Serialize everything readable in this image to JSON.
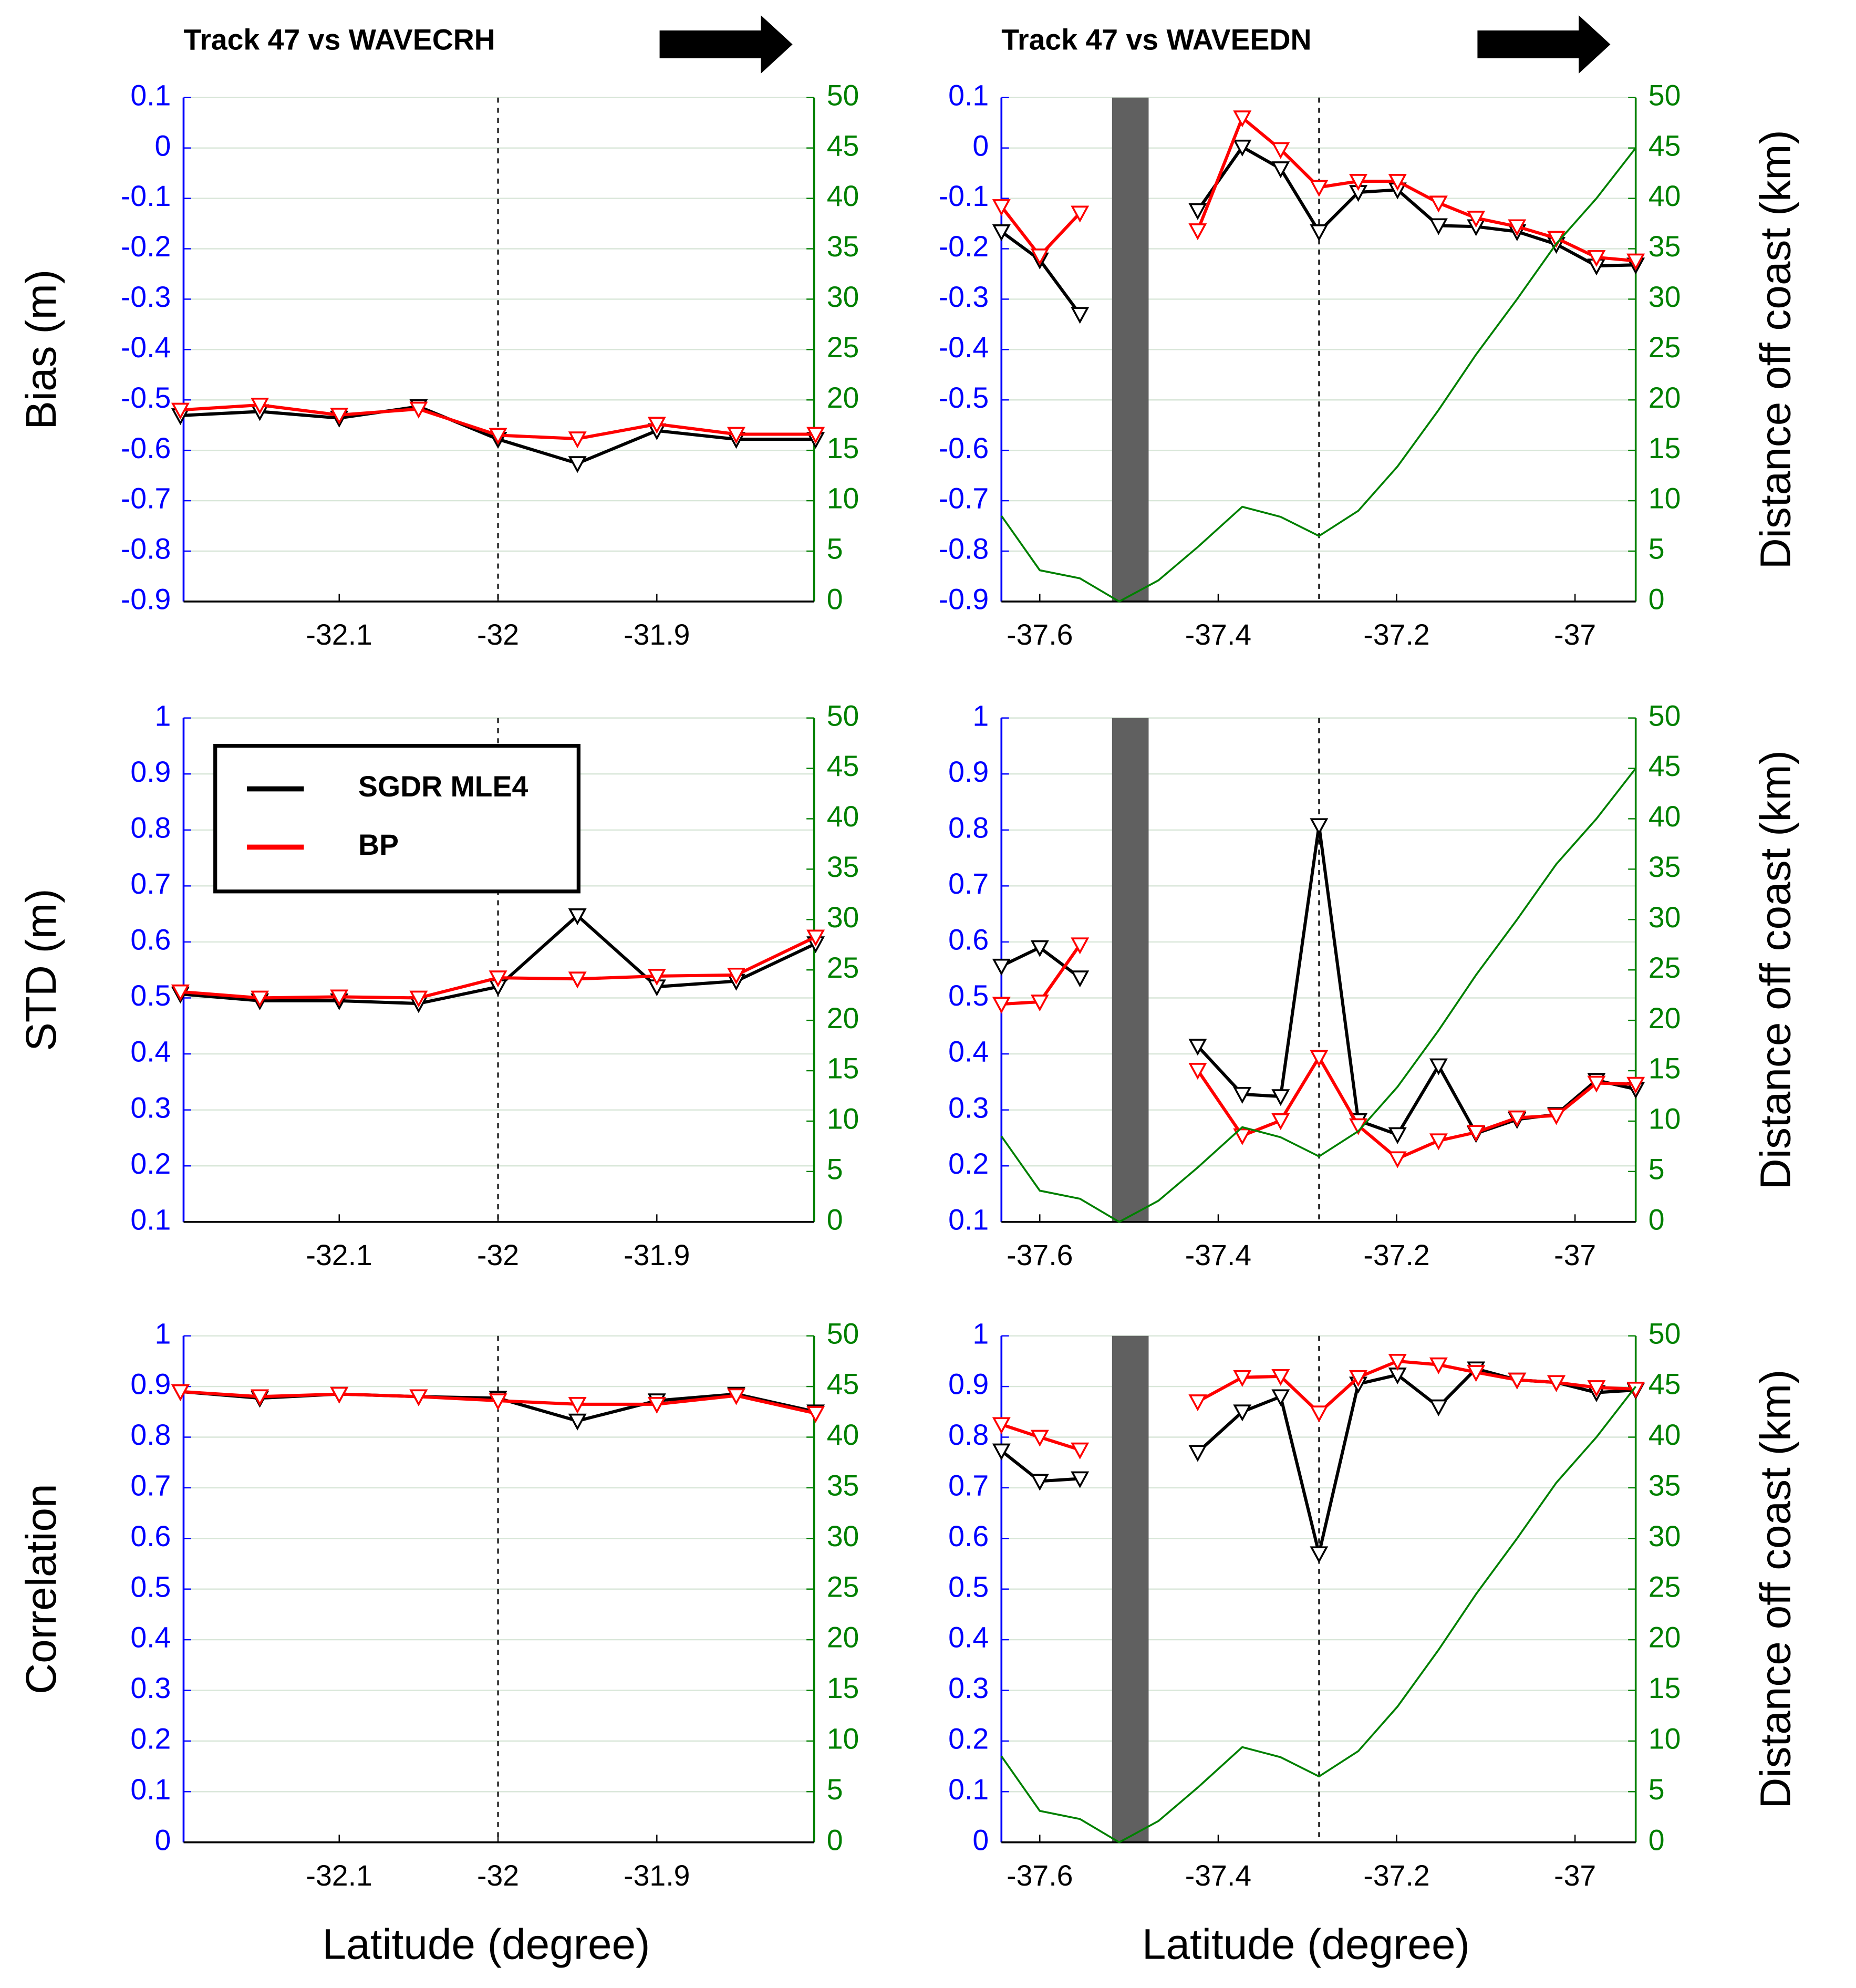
{
  "chart_data": [
    {
      "type": "line",
      "title": "Track 47 vs WAVECRH",
      "ylabel": "Bias (m)",
      "x": [
        -32.2,
        -32.15,
        -32.1,
        -32.05,
        -32.0,
        -31.95,
        -31.9,
        -31.85,
        -31.8
      ],
      "xlim": [
        -32.198,
        -31.801
      ],
      "xticks": [
        -32.1,
        -32,
        -31.9
      ],
      "ylim": [
        -0.9,
        0.1
      ],
      "yticks": [
        0.1,
        0,
        -0.1,
        -0.2,
        -0.3,
        -0.4,
        -0.5,
        -0.6,
        -0.7,
        -0.8,
        -0.9
      ],
      "y2lim": [
        0,
        50
      ],
      "y2ticks": [
        50,
        45,
        40,
        35,
        30,
        25,
        20,
        15,
        10,
        5,
        0
      ],
      "ycolor": "#0000ff",
      "y2color": "#008000",
      "grid": true,
      "vlines": [
        -32
      ],
      "series": [
        {
          "color": "#000000",
          "marker": "v",
          "values": [
            -0.531,
            -0.523,
            -0.536,
            -0.513,
            -0.578,
            -0.626,
            -0.561,
            -0.578,
            -0.578
          ]
        },
        {
          "color": "#ff0000",
          "marker": "v",
          "values": [
            -0.52,
            -0.51,
            -0.53,
            -0.518,
            -0.57,
            -0.577,
            -0.548,
            -0.568,
            -0.568
          ]
        }
      ]
    },
    {
      "type": "line",
      "title": "Track 47 vs WAVEEDN",
      "y2label": "Distance off coast (km)",
      "x": [
        -37.643,
        -37.6,
        -37.555,
        -37.511,
        -37.467,
        -37.423,
        -37.373,
        -37.33,
        -37.287,
        -37.243,
        -37.199,
        -37.153,
        -37.111,
        -37.065,
        -37.021,
        -36.976,
        -36.932
      ],
      "xlim": [
        -37.643,
        -36.932
      ],
      "xticks": [
        -37.6,
        -37.4,
        -37.2,
        -37
      ],
      "ylim": [
        -0.9,
        0.1
      ],
      "yticks": [
        0.1,
        0,
        -0.1,
        -0.2,
        -0.3,
        -0.4,
        -0.5,
        -0.6,
        -0.7,
        -0.8,
        -0.9
      ],
      "y2lim": [
        0,
        50
      ],
      "y2ticks": [
        50,
        45,
        40,
        35,
        30,
        25,
        20,
        15,
        10,
        5,
        0
      ],
      "ycolor": "#0000ff",
      "y2color": "#008000",
      "grid": true,
      "vlines": [
        -37.287
      ],
      "shade": [
        -37.519,
        -37.478
      ],
      "shade_color": "#606060",
      "series": [
        {
          "color": "#000000",
          "marker": "v",
          "values": [
            -0.166,
            -0.222,
            -0.33,
            null,
            null,
            -0.124,
            0.002,
            -0.041,
            -0.166,
            -0.088,
            -0.083,
            -0.154,
            -0.156,
            -0.166,
            -0.191,
            -0.234,
            -0.232
          ]
        },
        {
          "color": "#ff0000",
          "marker": "v",
          "values": [
            -0.116,
            -0.214,
            -0.129,
            null,
            null,
            -0.164,
            0.06,
            -0.003,
            -0.078,
            -0.066,
            -0.066,
            -0.109,
            -0.139,
            -0.156,
            -0.179,
            -0.217,
            -0.224
          ]
        },
        {
          "color": "#008000",
          "axis": "y2",
          "values": [
            8.5,
            3.1,
            2.3,
            0,
            2.1,
            5.4,
            9.4,
            8.4,
            6.5,
            9.0,
            13.4,
            19,
            24.5,
            30,
            35.5,
            40,
            45
          ]
        }
      ]
    },
    {
      "type": "line",
      "ylabel": "STD (m)",
      "legend": true,
      "legend_loc": "upper left",
      "x": [
        -32.2,
        -32.15,
        -32.1,
        -32.05,
        -32.0,
        -31.95,
        -31.9,
        -31.85,
        -31.8
      ],
      "xlim": [
        -32.198,
        -31.801
      ],
      "xticks": [
        -32.1,
        -32,
        -31.9
      ],
      "ylim": [
        0.1,
        1
      ],
      "yticks": [
        1,
        0.9,
        0.8,
        0.7,
        0.6,
        0.5,
        0.4,
        0.3,
        0.2,
        0.1
      ],
      "y2lim": [
        0,
        50
      ],
      "y2ticks": [
        50,
        45,
        40,
        35,
        30,
        25,
        20,
        15,
        10,
        5,
        0
      ],
      "ycolor": "#0000ff",
      "y2color": "#008000",
      "grid": true,
      "vlines": [
        -32
      ],
      "series": [
        {
          "name": "SGDR MLE4",
          "color": "#000000",
          "marker": "v",
          "values": [
            0.507,
            0.495,
            0.495,
            0.49,
            0.52,
            0.647,
            0.52,
            0.53,
            0.597
          ]
        },
        {
          "name": "BP",
          "color": "#ff0000",
          "marker": "v",
          "values": [
            0.511,
            0.5,
            0.502,
            0.5,
            0.536,
            0.534,
            0.539,
            0.541,
            0.609
          ]
        }
      ]
    },
    {
      "type": "line",
      "y2label": "Distance off coast (km)",
      "x": [
        -37.643,
        -37.6,
        -37.555,
        -37.511,
        -37.467,
        -37.423,
        -37.373,
        -37.33,
        -37.287,
        -37.243,
        -37.199,
        -37.153,
        -37.111,
        -37.065,
        -37.021,
        -36.976,
        -36.932
      ],
      "xlim": [
        -37.643,
        -36.932
      ],
      "xticks": [
        -37.6,
        -37.4,
        -37.2,
        -37
      ],
      "ylim": [
        0.1,
        1
      ],
      "yticks": [
        1,
        0.9,
        0.8,
        0.7,
        0.6,
        0.5,
        0.4,
        0.3,
        0.2,
        0.1
      ],
      "y2lim": [
        0,
        50
      ],
      "y2ticks": [
        50,
        45,
        40,
        35,
        30,
        25,
        20,
        15,
        10,
        5,
        0
      ],
      "ycolor": "#0000ff",
      "y2color": "#008000",
      "grid": true,
      "vlines": [
        -37.287
      ],
      "shade": [
        -37.519,
        -37.478
      ],
      "shade_color": "#606060",
      "series": [
        {
          "color": "#000000",
          "marker": "v",
          "values": [
            0.557,
            0.59,
            0.536,
            null,
            null,
            0.414,
            0.328,
            0.324,
            0.808,
            0.281,
            0.256,
            0.379,
            0.258,
            0.283,
            0.292,
            0.353,
            0.337
          ]
        },
        {
          "color": "#ff0000",
          "marker": "v",
          "values": [
            0.489,
            0.493,
            0.595,
            null,
            null,
            0.371,
            0.254,
            0.281,
            0.394,
            0.272,
            0.213,
            0.245,
            0.26,
            0.286,
            0.29,
            0.348,
            0.346
          ]
        },
        {
          "color": "#008000",
          "axis": "y2",
          "values": [
            8.5,
            3.1,
            2.3,
            0,
            2.1,
            5.4,
            9.4,
            8.4,
            6.5,
            9.0,
            13.4,
            19,
            24.5,
            30,
            35.5,
            40,
            45
          ]
        }
      ]
    },
    {
      "type": "line",
      "ylabel": "Correlation",
      "xlabel": "Latitude (degree)",
      "x": [
        -32.2,
        -32.15,
        -32.1,
        -32.05,
        -32.0,
        -31.95,
        -31.9,
        -31.85,
        -31.8
      ],
      "xlim": [
        -32.198,
        -31.801
      ],
      "xticks": [
        -32.1,
        -32,
        -31.9
      ],
      "ylim": [
        0,
        1
      ],
      "yticks": [
        1,
        0.9,
        0.8,
        0.7,
        0.6,
        0.5,
        0.4,
        0.3,
        0.2,
        0.1,
        0
      ],
      "y2lim": [
        0,
        50
      ],
      "y2ticks": [
        50,
        45,
        40,
        35,
        30,
        25,
        20,
        15,
        10,
        5,
        0
      ],
      "ycolor": "#0000ff",
      "y2color": "#008000",
      "grid": true,
      "vlines": [
        -32
      ],
      "series": [
        {
          "color": "#000000",
          "marker": "v",
          "values": [
            0.89,
            0.877,
            0.885,
            0.88,
            0.877,
            0.832,
            0.872,
            0.885,
            0.85
          ]
        },
        {
          "color": "#ff0000",
          "marker": "v",
          "values": [
            0.89,
            0.88,
            0.885,
            0.88,
            0.872,
            0.865,
            0.865,
            0.882,
            0.847
          ]
        }
      ]
    },
    {
      "type": "line",
      "y2label": "Distance off coast (km)",
      "xlabel": "Latitude (degree)",
      "x": [
        -37.643,
        -37.6,
        -37.555,
        -37.511,
        -37.467,
        -37.423,
        -37.373,
        -37.33,
        -37.287,
        -37.243,
        -37.199,
        -37.153,
        -37.111,
        -37.065,
        -37.021,
        -36.976,
        -36.932
      ],
      "xlim": [
        -37.643,
        -36.932
      ],
      "xticks": [
        -37.6,
        -37.4,
        -37.2,
        -37
      ],
      "ylim": [
        0,
        1
      ],
      "yticks": [
        1,
        0.9,
        0.8,
        0.7,
        0.6,
        0.5,
        0.4,
        0.3,
        0.2,
        0.1,
        0
      ],
      "y2lim": [
        0,
        50
      ],
      "y2ticks": [
        50,
        45,
        40,
        35,
        30,
        25,
        20,
        15,
        10,
        5,
        0
      ],
      "ycolor": "#0000ff",
      "y2color": "#008000",
      "grid": true,
      "vlines": [
        -37.287
      ],
      "shade": [
        -37.519,
        -37.478
      ],
      "shade_color": "#606060",
      "series": [
        {
          "color": "#000000",
          "marker": "v",
          "values": [
            0.773,
            0.713,
            0.718,
            null,
            null,
            0.77,
            0.85,
            0.88,
            0.57,
            0.905,
            0.923,
            0.86,
            0.935,
            0.913,
            0.908,
            0.888,
            0.893
          ]
        },
        {
          "color": "#ff0000",
          "marker": "v",
          "values": [
            0.825,
            0.8,
            0.775,
            null,
            null,
            0.87,
            0.918,
            0.92,
            0.848,
            0.918,
            0.95,
            0.943,
            0.928,
            0.913,
            0.908,
            0.898,
            0.895
          ]
        },
        {
          "color": "#008000",
          "axis": "y2",
          "values": [
            8.5,
            3.1,
            2.3,
            0,
            2.1,
            5.4,
            9.4,
            8.4,
            6.5,
            9.0,
            13.4,
            19,
            24.5,
            30,
            35.5,
            40,
            45
          ]
        }
      ]
    }
  ]
}
